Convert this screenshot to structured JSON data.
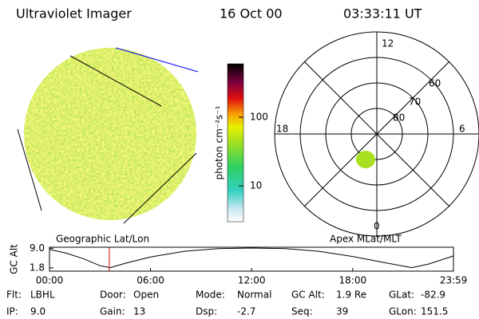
{
  "header": {
    "title": "Ultraviolet Imager",
    "date": "16 Oct 00",
    "time": "03:33:11 UT"
  },
  "image_label": "Geographic Lat/Lon",
  "polar": {
    "label": "Apex MLat/MLT",
    "mlt_labels": [
      "12",
      "18",
      "6",
      "0"
    ],
    "lat_labels": [
      "60",
      "70",
      "80"
    ]
  },
  "colorbar": {
    "label": "photon cm⁻²s⁻¹",
    "log_scale": true,
    "clim": [
      3,
      600
    ],
    "ticks": [
      10,
      100
    ]
  },
  "orbit": {
    "ylabel": "GC Alt",
    "ylim": [
      0.6,
      9.4
    ],
    "yticks": [
      {
        "value": 9,
        "label": "9.0"
      },
      {
        "value": 1.8,
        "label": "1.8"
      }
    ],
    "xlim": [
      0,
      23.98
    ],
    "xticks": [
      {
        "value": 0,
        "label": "00:00"
      },
      {
        "value": 6,
        "label": "06:00"
      },
      {
        "value": 12,
        "label": "12:00"
      },
      {
        "value": 18,
        "label": "18:00"
      },
      {
        "value": 23.98,
        "label": "23:59"
      }
    ],
    "x": [
      0,
      1,
      2,
      3,
      3.6,
      4.5,
      6,
      8,
      10,
      12,
      14,
      16,
      18,
      20,
      21.5,
      22.5,
      23.98
    ],
    "values": [
      8.6,
      7.2,
      5.2,
      2.6,
      1.9,
      3.5,
      5.8,
      7.9,
      8.9,
      9.1,
      8.9,
      7.9,
      6.0,
      3.6,
      1.9,
      3.2,
      6.2
    ],
    "current_hour": 3.55
  },
  "info": [
    [
      [
        "Flt:",
        "LBHL"
      ],
      [
        "Door:",
        "Open"
      ],
      [
        "Mode:",
        "Normal"
      ],
      [
        "GC Alt:",
        "1.9 Re"
      ],
      [
        "GLat:",
        "-82.9"
      ]
    ],
    [
      [
        "IP:",
        "9.0"
      ],
      [
        "Gain:",
        "13"
      ],
      [
        "Dsp:",
        "-2.7"
      ],
      [
        "Seq:",
        "39"
      ],
      [
        "GLon:",
        "151.5"
      ]
    ]
  ]
}
